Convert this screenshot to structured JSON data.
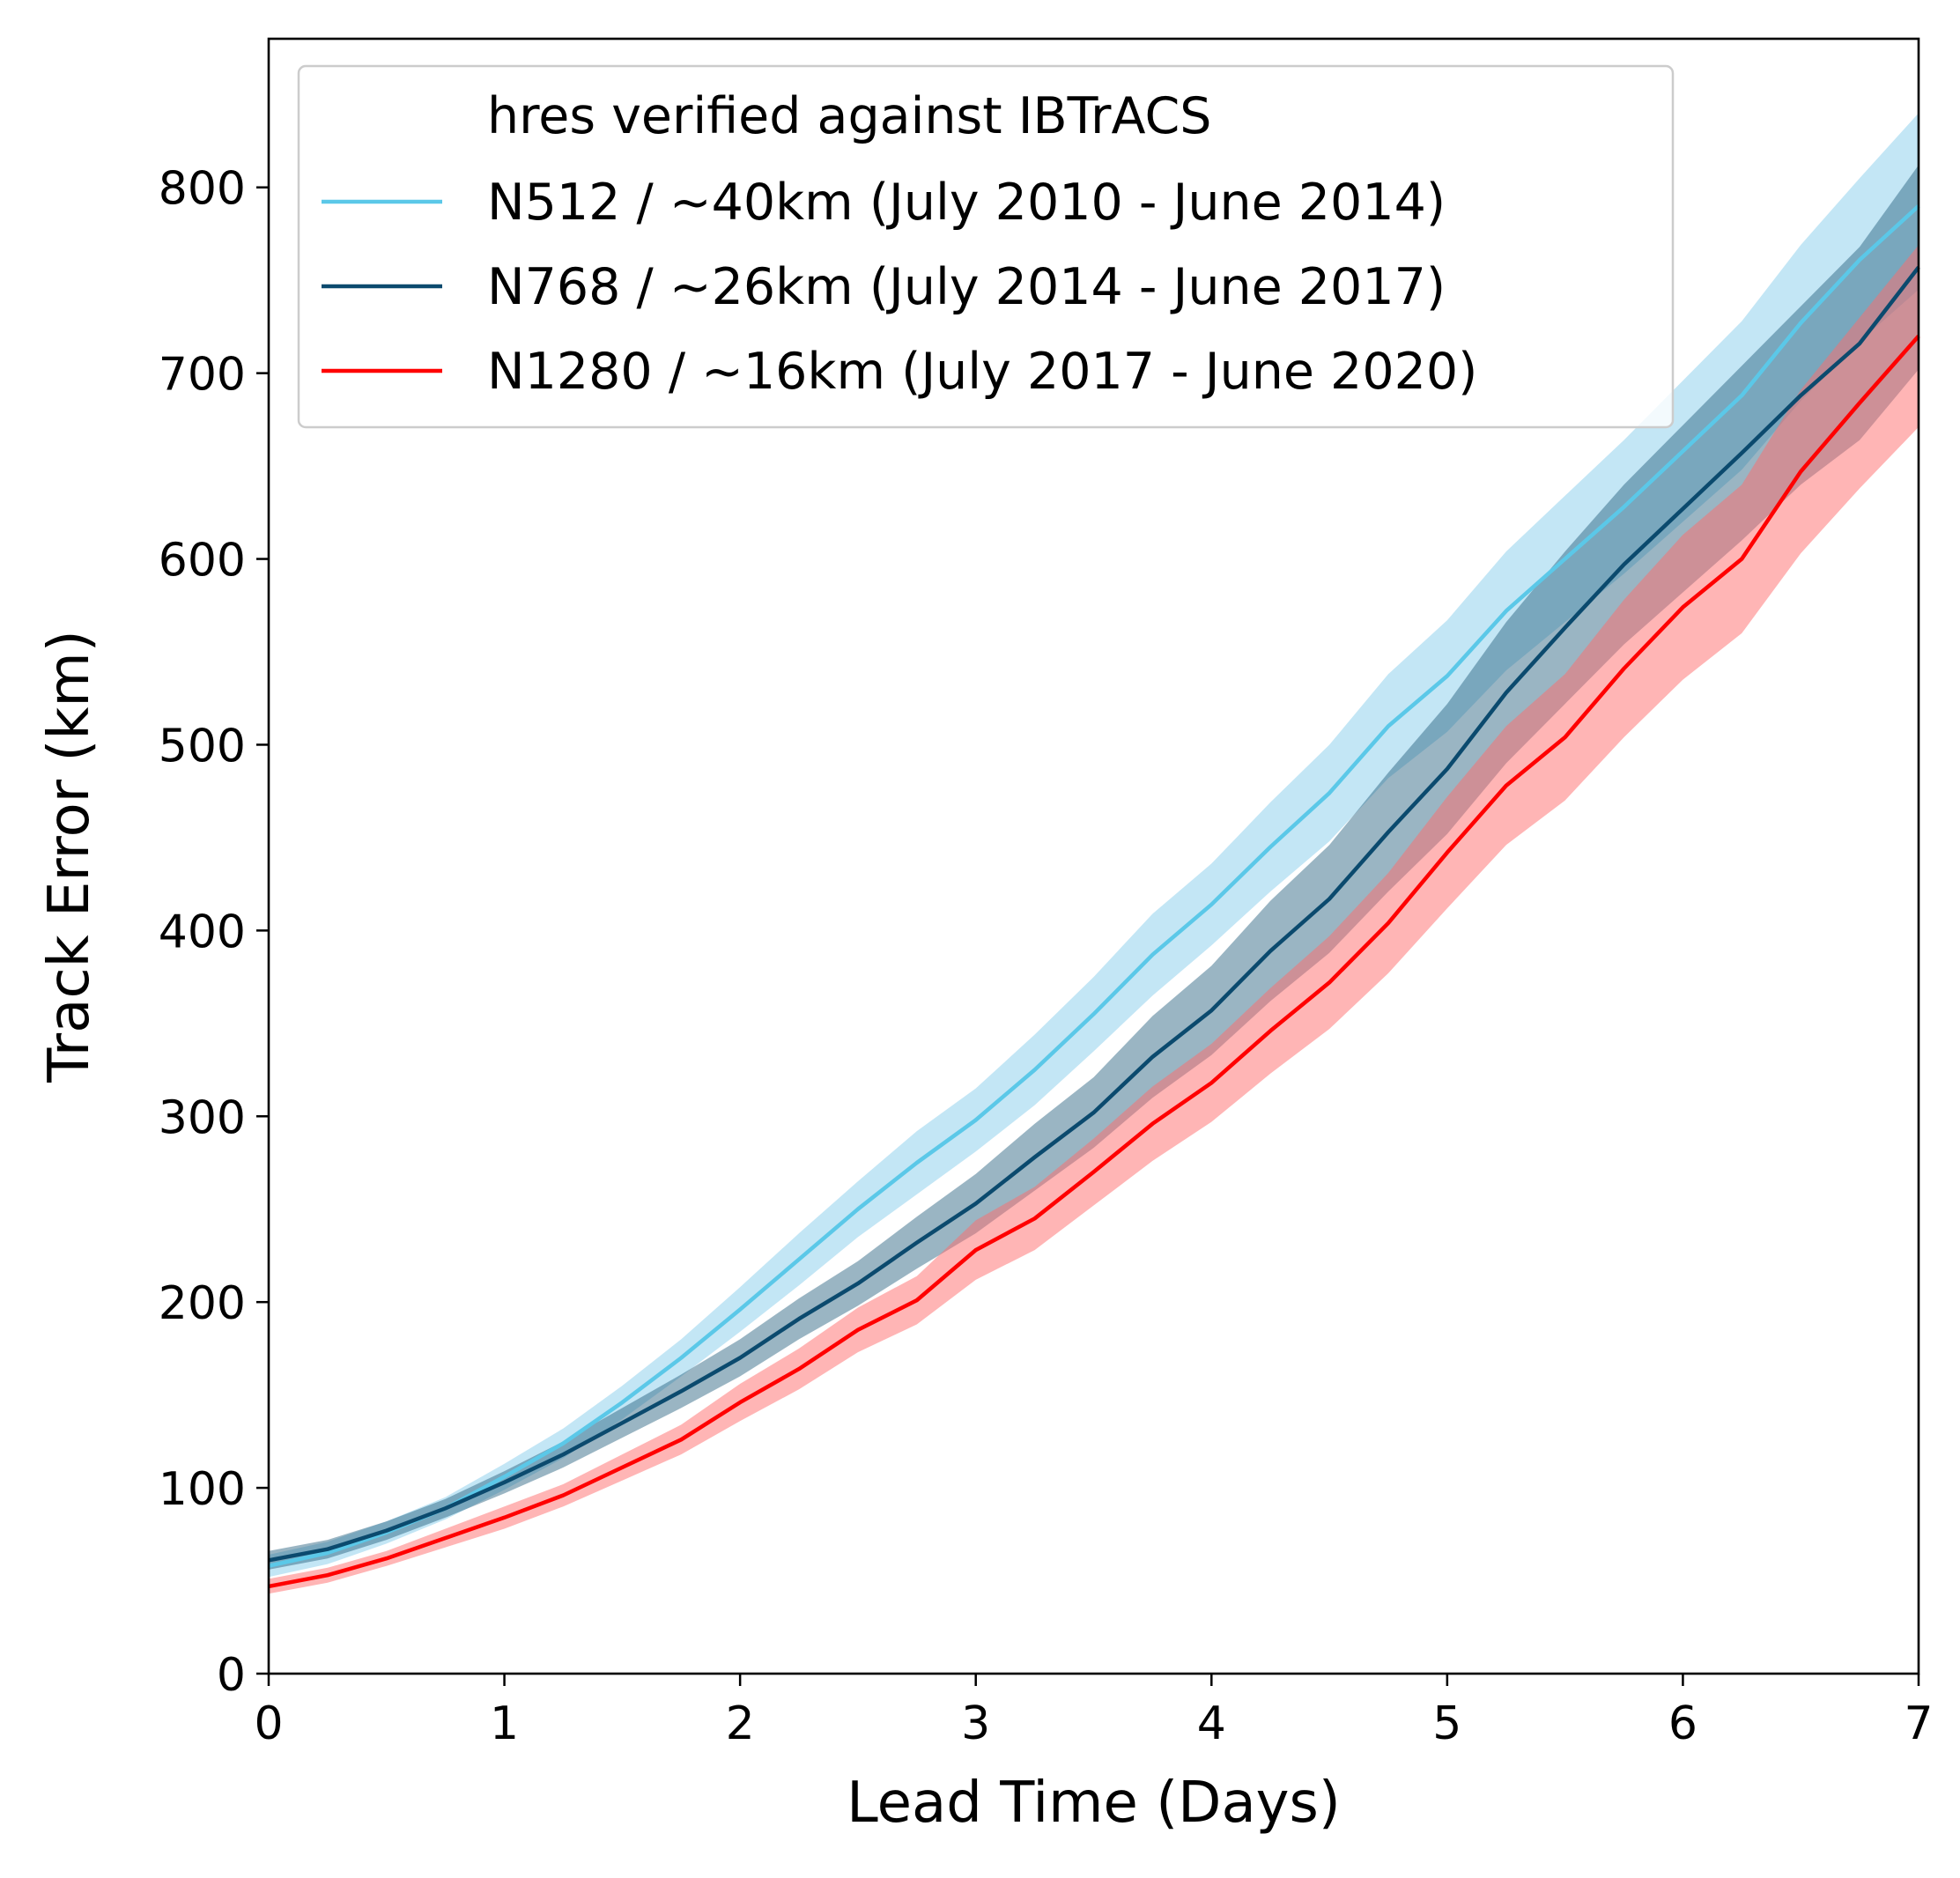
{
  "chart_data": {
    "type": "line",
    "xlabel": "Lead Time (Days)",
    "ylabel": "Track Error (km)",
    "xlim": [
      0,
      7
    ],
    "ylim": [
      0,
      880
    ],
    "xticks": [
      0,
      1,
      2,
      3,
      4,
      5,
      6,
      7
    ],
    "yticks": [
      0,
      100,
      200,
      300,
      400,
      500,
      600,
      700,
      800
    ],
    "grid": false,
    "legend": {
      "placement": "top-left",
      "title": "hres verified against IBTrACS"
    },
    "x": [
      0,
      0.25,
      0.5,
      0.75,
      1,
      1.25,
      1.5,
      1.75,
      2,
      2.25,
      2.5,
      2.75,
      3,
      3.25,
      3.5,
      3.75,
      4,
      4.25,
      4.5,
      4.75,
      5,
      5.25,
      5.5,
      5.75,
      6,
      6.25,
      6.5,
      6.75,
      7
    ],
    "series": [
      {
        "name": "N512 / ~40km (July 2010 - June 2014)",
        "color": "#5bc8e8",
        "band_color": "#87ceeb",
        "values": [
          58,
          65,
          76,
          89,
          106,
          124,
          146,
          170,
          196,
          223,
          250,
          275,
          298,
          325,
          355,
          387,
          414,
          445,
          474,
          510,
          537,
          572,
          600,
          628,
          658,
          688,
          727,
          761,
          790
        ],
        "lower": [
          52,
          59,
          70,
          83,
          99,
          116,
          137,
          160,
          184,
          209,
          235,
          258,
          281,
          306,
          335,
          365,
          392,
          421,
          448,
          482,
          507,
          540,
          566,
          592,
          620,
          648,
          685,
          717,
          745
        ],
        "upper": [
          64,
          71,
          82,
          95,
          113,
          132,
          155,
          180,
          208,
          237,
          265,
          292,
          315,
          344,
          375,
          409,
          436,
          469,
          500,
          538,
          567,
          604,
          634,
          664,
          696,
          728,
          769,
          805,
          840
        ]
      },
      {
        "name": "N768 / ~26km (July 2014 - June 2017)",
        "color": "#0b4a6e",
        "band_color": "#1f5a7a",
        "values": [
          61,
          67,
          77,
          89,
          103,
          118,
          135,
          152,
          170,
          191,
          210,
          232,
          253,
          278,
          302,
          332,
          357,
          389,
          417,
          453,
          487,
          528,
          563,
          597,
          627,
          657,
          688,
          716,
          757
        ],
        "lower": [
          56,
          62,
          72,
          84,
          97,
          111,
          127,
          143,
          160,
          180,
          198,
          218,
          237,
          260,
          283,
          310,
          333,
          362,
          388,
          421,
          452,
          490,
          522,
          554,
          582,
          610,
          640,
          664,
          702
        ],
        "upper": [
          66,
          72,
          82,
          94,
          109,
          125,
          143,
          161,
          180,
          202,
          222,
          246,
          269,
          296,
          321,
          354,
          381,
          416,
          446,
          485,
          522,
          566,
          604,
          640,
          672,
          704,
          736,
          768,
          812
        ]
      },
      {
        "name": "N1280 / ~16km (July 2017 - June 2020)",
        "color": "#ff0000",
        "band_color": "#ff6b6b",
        "values": [
          47,
          53,
          62,
          73,
          84,
          96,
          111,
          126,
          146,
          164,
          185,
          201,
          228,
          245,
          270,
          296,
          318,
          346,
          372,
          404,
          442,
          478,
          504,
          541,
          574,
          600,
          647,
          684,
          720
        ],
        "lower": [
          43,
          49,
          58,
          68,
          78,
          90,
          104,
          118,
          136,
          153,
          173,
          188,
          212,
          228,
          252,
          276,
          297,
          323,
          347,
          377,
          412,
          446,
          470,
          504,
          535,
          560,
          603,
          638,
          671
        ],
        "upper": [
          51,
          57,
          66,
          78,
          90,
          102,
          118,
          134,
          156,
          175,
          197,
          214,
          244,
          262,
          288,
          316,
          339,
          369,
          397,
          431,
          472,
          510,
          538,
          578,
          613,
          640,
          691,
          730,
          769
        ]
      }
    ]
  }
}
